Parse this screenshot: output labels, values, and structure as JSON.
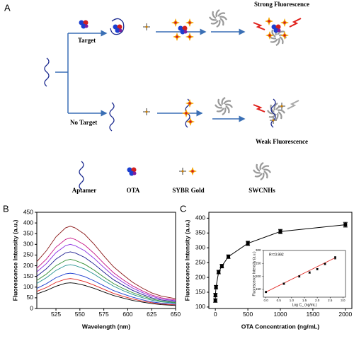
{
  "diagram": {
    "panel_label": "A",
    "branch_labels": [
      "Target",
      "No Target"
    ],
    "outcomes": [
      "Strong Fluorescence",
      "Weak Fluorescence"
    ],
    "legend": [
      "Aptamer",
      "OTA",
      "SYBR Gold",
      "SWCNHs"
    ]
  },
  "chart_data": [
    {
      "type": "line",
      "panel_label": "B",
      "x_label": "Wavelength (nm)",
      "y_label": "Fluorescence Intensity (a.u.)",
      "annotations": [
        "i",
        "a"
      ],
      "x": [
        505,
        515,
        525,
        535,
        540,
        545,
        555,
        565,
        575,
        585,
        595,
        605,
        615,
        625,
        635,
        650
      ],
      "xlim": [
        505,
        650
      ],
      "xticks": [
        525,
        550,
        575,
        600,
        625,
        650
      ],
      "ylim": [
        0,
        450
      ],
      "yticks": [
        0,
        50,
        100,
        150,
        200,
        250,
        300,
        350,
        400,
        450
      ],
      "series": [
        {
          "color": "#000000",
          "values": [
            68,
            84,
            104,
            118,
            120,
            118,
            108,
            94,
            77,
            61,
            49,
            38,
            30,
            23,
            18,
            14
          ]
        },
        {
          "color": "#e0201b",
          "values": [
            80,
            98,
            122,
            137,
            140,
            137,
            126,
            109,
            90,
            71,
            57,
            45,
            35,
            27,
            21,
            17
          ]
        },
        {
          "color": "#1a3ccf",
          "values": [
            94,
            116,
            144,
            162,
            165,
            162,
            149,
            129,
            106,
            84,
            68,
            53,
            41,
            31,
            25,
            20
          ]
        },
        {
          "color": "#1f8f8f",
          "values": [
            117,
            144,
            178,
            201,
            205,
            201,
            185,
            160,
            131,
            105,
            84,
            66,
            51,
            39,
            31,
            25
          ]
        },
        {
          "color": "#2e8b2e",
          "values": [
            131,
            161,
            200,
            225,
            230,
            225,
            207,
            179,
            147,
            117,
            94,
            74,
            58,
            44,
            35,
            28
          ]
        },
        {
          "color": "#1b1b8f",
          "values": [
            151,
            186,
            231,
            260,
            265,
            260,
            239,
            207,
            170,
            135,
            109,
            85,
            66,
            50,
            40,
            32
          ]
        },
        {
          "color": "#8a2be2",
          "values": [
            171,
            210,
            261,
            294,
            300,
            294,
            270,
            234,
            192,
            153,
            123,
            96,
            75,
            57,
            45,
            36
          ]
        },
        {
          "color": "#c71585",
          "values": [
            188,
            231,
            287,
            323,
            330,
            323,
            297,
            257,
            211,
            168,
            135,
            106,
            83,
            63,
            50,
            40
          ]
        },
        {
          "color": "#8b1a1a",
          "values": [
            219,
            270,
            335,
            377,
            385,
            377,
            347,
            300,
            246,
            196,
            158,
            123,
            96,
            73,
            58,
            46
          ]
        }
      ]
    },
    {
      "type": "errorbar",
      "panel_label": "C",
      "x_label": "OTA Concentration (ng/mL)",
      "y_label": "Fluorescence Intensity (a.u.)",
      "x": [
        0,
        1,
        10,
        50,
        100,
        200,
        500,
        1000,
        2000
      ],
      "values": [
        122,
        140,
        167,
        218,
        238,
        270,
        315,
        355,
        378
      ],
      "errors": [
        6,
        6,
        6,
        6,
        6,
        6,
        7,
        7,
        8
      ],
      "color": "#000000",
      "xlim": [
        -100,
        2100
      ],
      "xticks": [
        0,
        500,
        1000,
        1500,
        2000
      ],
      "ylim": [
        95,
        420
      ],
      "yticks": [
        100,
        150,
        200,
        250,
        300,
        350,
        400
      ]
    },
    {
      "type": "scatter",
      "x_label": "Log C_ (ng/mL)",
      "y_label": "Fluorescence Intensity (a.u.)",
      "annotations": [
        "R²=0.992"
      ],
      "x": [
        0,
        0.7,
        1.3,
        1.7,
        2.0,
        2.3,
        2.7
      ],
      "values": [
        140,
        172,
        200,
        215,
        228,
        248,
        272
      ],
      "errors": [
        3,
        3,
        3,
        3,
        3,
        3,
        5
      ],
      "color": "#000000",
      "fit_color": "#e0201b",
      "xlim": [
        -0.1,
        3.1
      ],
      "xticks": [
        {
          "value": 0,
          "label": "0.0"
        },
        {
          "value": 0.5,
          "label": "0.5"
        },
        {
          "value": 1,
          "label": "1.0"
        },
        {
          "value": 1.5,
          "label": "1.5"
        },
        {
          "value": 2,
          "label": "2.0"
        },
        {
          "value": 2.5,
          "label": "2.5"
        },
        {
          "value": 3,
          "label": "3.0"
        }
      ],
      "ylim": [
        120,
        300
      ],
      "yticks": [
        150,
        200,
        250,
        300
      ]
    }
  ]
}
